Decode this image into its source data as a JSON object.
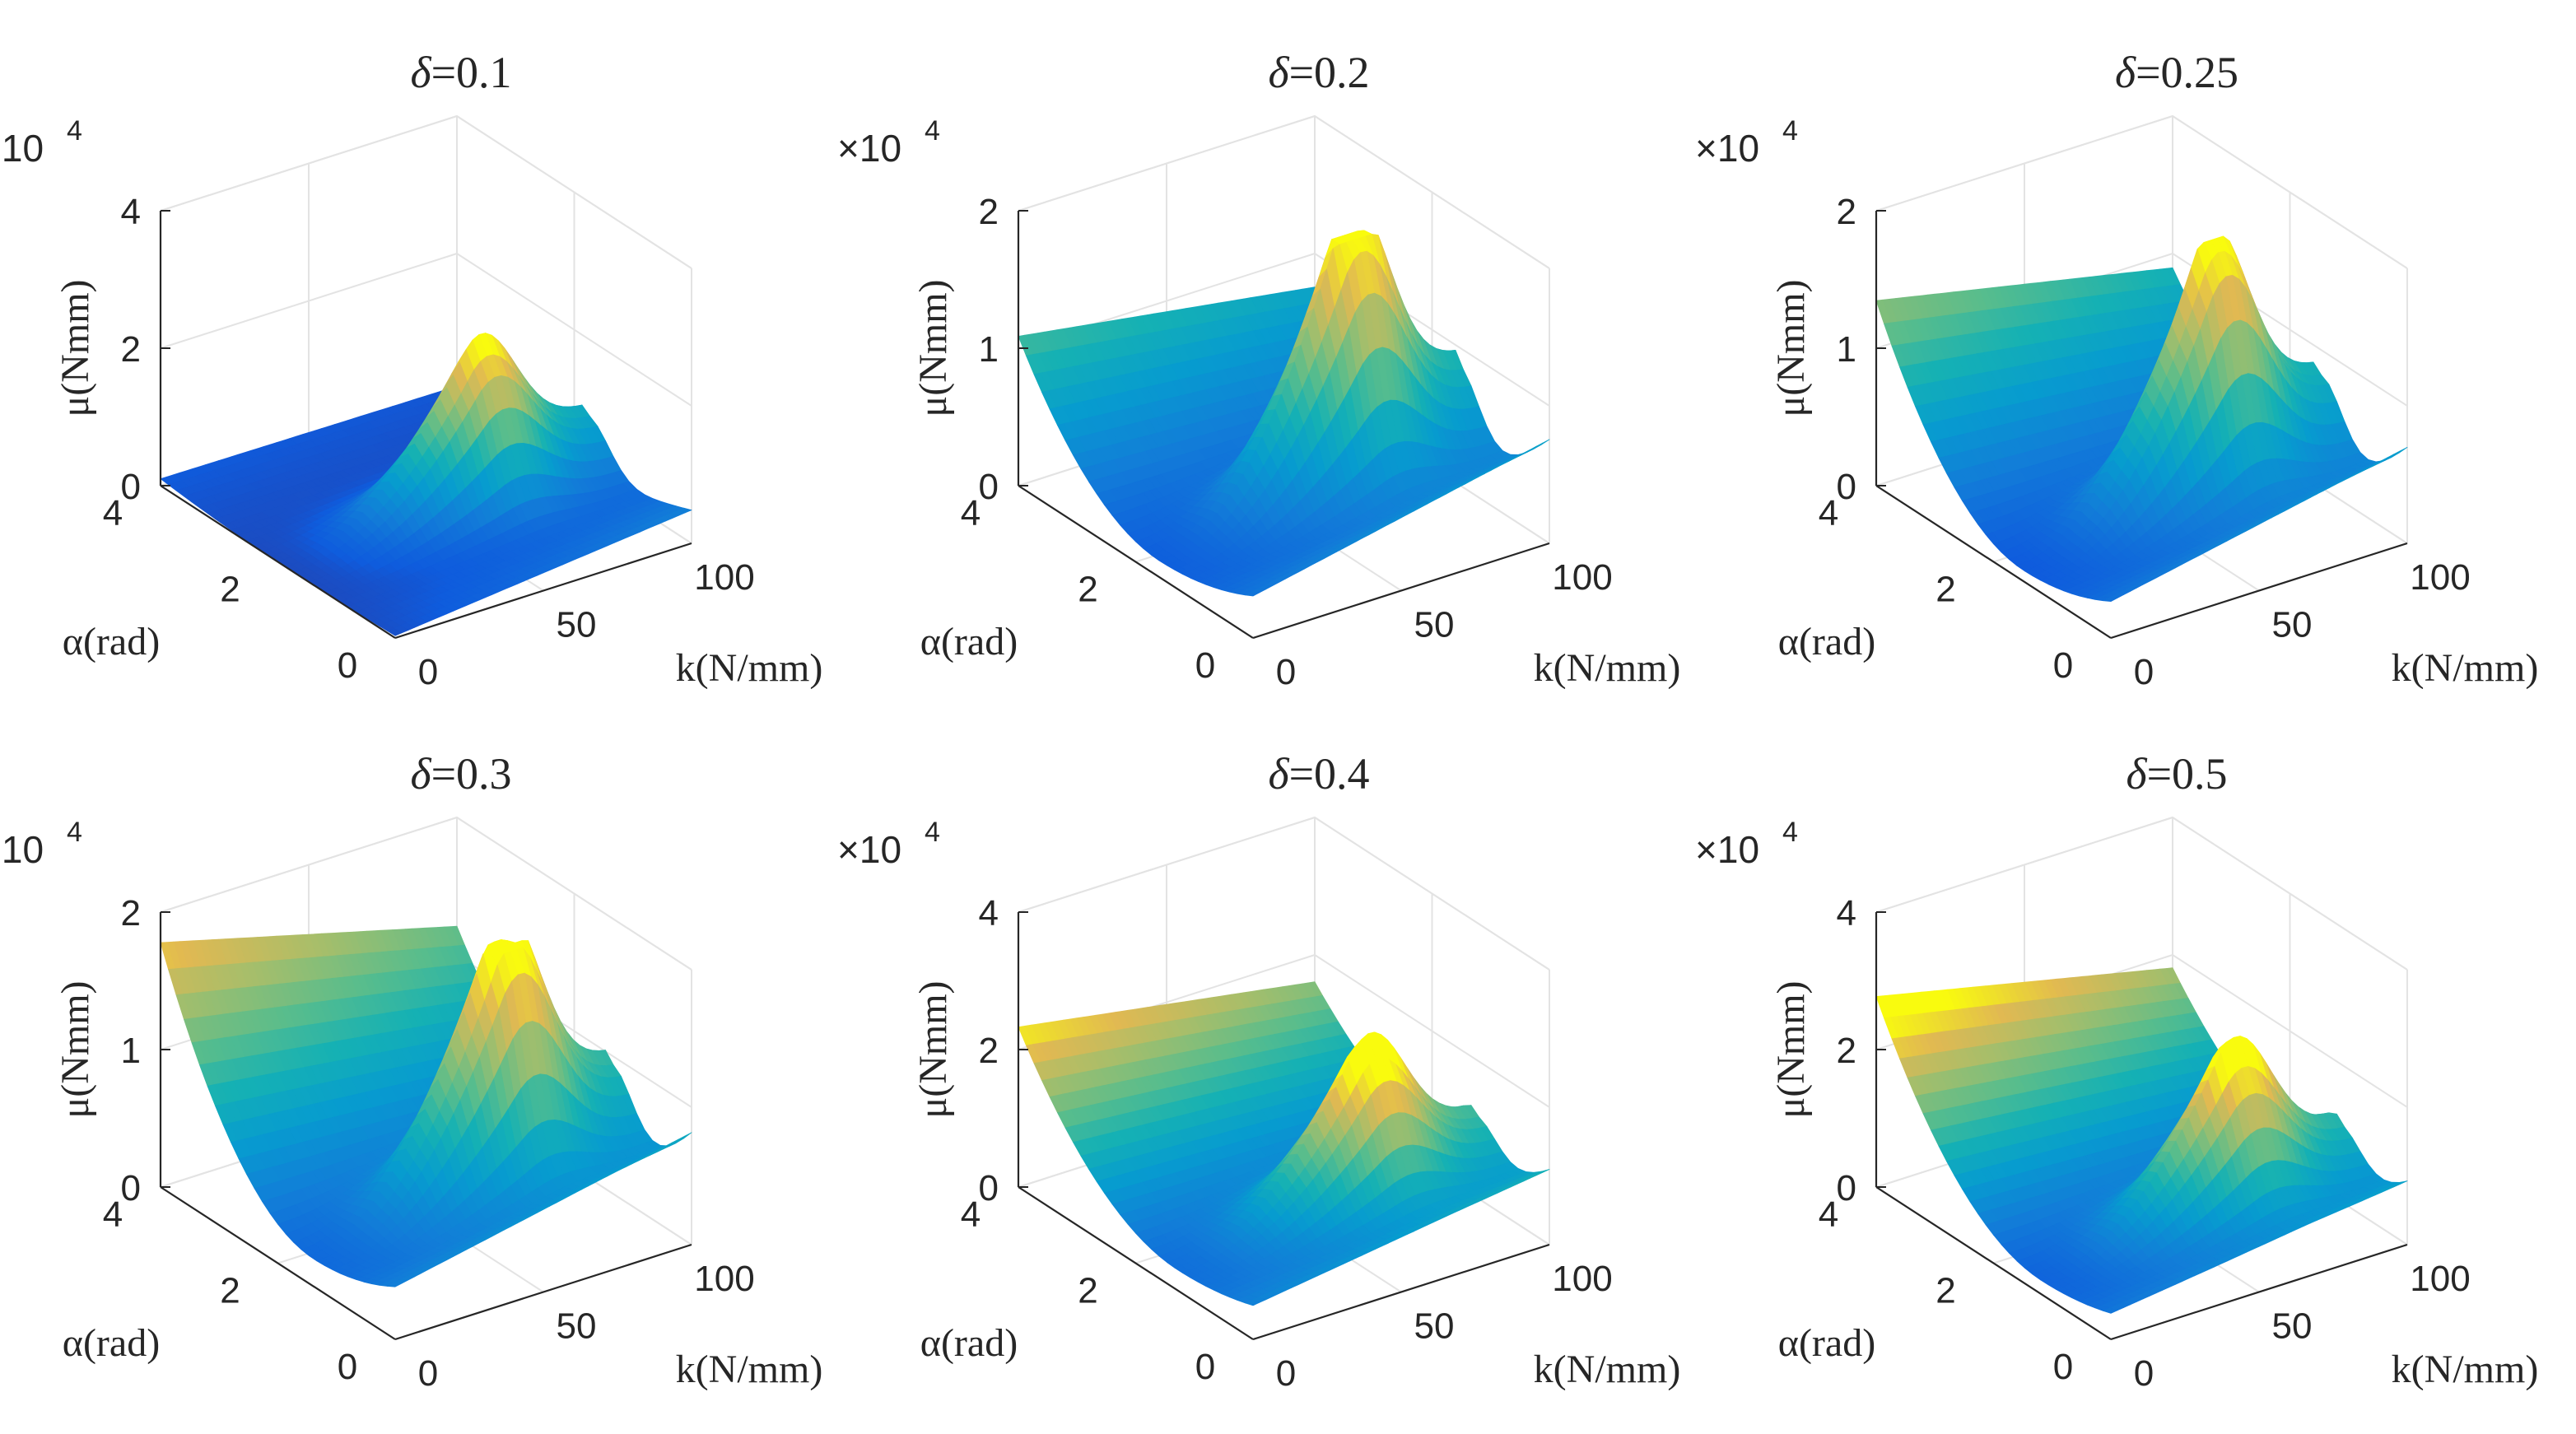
{
  "chart_data": {
    "type": "surface3d",
    "layout": "2x3",
    "xlabel": "k(N/mm)",
    "ylabel": "α(rad)",
    "zlabel": "μ(Nmm)",
    "z_multiplier_label": "×10",
    "z_multiplier_exp": "4",
    "x_ticks": [
      "0",
      "50",
      "100"
    ],
    "y_ticks": [
      "0",
      "2",
      "4"
    ],
    "x_range": [
      0,
      100
    ],
    "y_range": [
      0,
      4
    ],
    "colormap": "parula",
    "panels": [
      {
        "title_sym": "δ",
        "title_val": "=0.1",
        "delta": 0.1,
        "zlim": [
          0,
          4
        ],
        "z_ticks": [
          "0",
          "2",
          "4"
        ],
        "alpha_valley": 1.8,
        "floor": 0.0,
        "ridge_peak": 2.3,
        "k_peak": 0.6,
        "left_edge": 0.05,
        "right_edge": 0.75,
        "curvature": 0.05
      },
      {
        "title_sym": "δ",
        "title_val": "=0.2",
        "delta": 0.2,
        "zlim": [
          0,
          2
        ],
        "z_ticks": [
          "0",
          "1",
          "2"
        ],
        "alpha_valley": 1.6,
        "floor": 0.12,
        "ridge_peak": 1.95,
        "k_peak": 0.6,
        "left_edge": 0.55,
        "right_edge": 0.75,
        "curvature": 0.35
      },
      {
        "title_sym": "δ",
        "title_val": "=0.25",
        "delta": 0.25,
        "zlim": [
          0,
          2
        ],
        "z_ticks": [
          "0",
          "1",
          "2"
        ],
        "alpha_valley": 1.5,
        "floor": 0.08,
        "ridge_peak": 1.9,
        "k_peak": 0.6,
        "left_edge": 0.75,
        "right_edge": 0.72,
        "curvature": 0.4
      },
      {
        "title_sym": "δ",
        "title_val": "=0.3",
        "delta": 0.3,
        "zlim": [
          0,
          2
        ],
        "z_ticks": [
          "0",
          "1",
          "2"
        ],
        "alpha_valley": 1.4,
        "floor": 0.2,
        "ridge_peak": 1.9,
        "k_peak": 0.6,
        "left_edge": 0.95,
        "right_edge": 0.72,
        "curvature": 0.45
      },
      {
        "title_sym": "δ",
        "title_val": "=0.4",
        "delta": 0.4,
        "zlim": [
          0,
          4
        ],
        "z_ticks": [
          "0",
          "2",
          "4"
        ],
        "alpha_valley": 1.3,
        "floor": 0.3,
        "ridge_peak": 2.3,
        "k_peak": 0.6,
        "left_edge": 1.2,
        "right_edge": 1.0,
        "curvature": 0.55
      },
      {
        "title_sym": "δ",
        "title_val": "=0.5",
        "delta": 0.5,
        "zlim": [
          0,
          4
        ],
        "z_ticks": [
          "0",
          "2",
          "4"
        ],
        "alpha_valley": 1.2,
        "floor": 0.2,
        "ridge_peak": 2.4,
        "k_peak": 0.6,
        "left_edge": 1.6,
        "right_edge": 0.9,
        "curvature": 0.6
      }
    ]
  }
}
